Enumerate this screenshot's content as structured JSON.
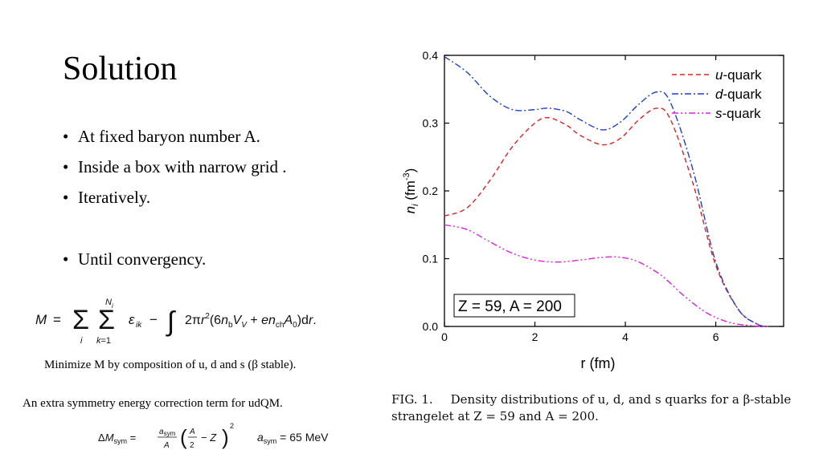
{
  "slide": {
    "title": "Solution",
    "bullets": [
      "At fixed baryon number A.",
      "Inside a box with narrow grid .",
      "Iteratively.",
      "Until convergency."
    ],
    "bullet_glyph": "•",
    "energy_equation": "M = Σ_i Σ_{k=1}^{N_i} ε_ik − ∫ 2πr²(6n_b V_V + e n_ch A_0) dr.",
    "note_minimize": "Minimize M by composition of u, d and s (β stable).",
    "note_symmetry": "An extra symmetry energy correction term for udQM.",
    "symmetry_equation": "ΔM_sym = (a_sym / A)(A/2 − Z)²",
    "asym_value": "a_sym = 65 MeV"
  },
  "figure": {
    "caption_lead": "FIG. 1.",
    "caption_text": "Density distributions of u, d, and s quarks for a β-stable strangelet at Z = 59 and A = 200."
  },
  "chart_data": {
    "type": "line",
    "xlabel": "r (fm)",
    "ylabel": "n_i (fm^-3)",
    "xlim": [
      0,
      7.5
    ],
    "ylim": [
      0,
      0.4
    ],
    "xticks": [
      0,
      2,
      4,
      6
    ],
    "yticks": [
      0.0,
      0.1,
      0.2,
      0.3,
      0.4
    ],
    "legend_position": "top-right",
    "annotation": "Z = 59, A = 200",
    "series": [
      {
        "name": "u-quark",
        "color": "#e02020",
        "dash": "dashed",
        "x": [
          0,
          0.5,
          1.0,
          1.5,
          2.0,
          2.3,
          2.7,
          3.0,
          3.5,
          3.9,
          4.3,
          4.7,
          5.0,
          5.5,
          6.0,
          6.5,
          6.9,
          7.1
        ],
        "y": [
          0.163,
          0.175,
          0.215,
          0.265,
          0.3,
          0.308,
          0.297,
          0.282,
          0.268,
          0.278,
          0.305,
          0.322,
          0.305,
          0.21,
          0.09,
          0.025,
          0.004,
          0.0
        ]
      },
      {
        "name": "d-quark",
        "color": "#1f3fd0",
        "dash": "dashdot",
        "x": [
          0,
          0.5,
          1.0,
          1.5,
          2.0,
          2.3,
          2.7,
          3.0,
          3.5,
          3.9,
          4.3,
          4.7,
          5.0,
          5.5,
          6.0,
          6.5,
          6.9,
          7.1
        ],
        "y": [
          0.398,
          0.375,
          0.34,
          0.32,
          0.32,
          0.322,
          0.317,
          0.305,
          0.29,
          0.302,
          0.328,
          0.346,
          0.33,
          0.23,
          0.095,
          0.025,
          0.004,
          0.0
        ]
      },
      {
        "name": "s-quark",
        "color": "#e020e0",
        "dash": "dashdotdot",
        "x": [
          0,
          0.5,
          1.0,
          1.5,
          2.0,
          2.5,
          3.0,
          3.5,
          3.9,
          4.3,
          4.8,
          5.3,
          5.8,
          6.3,
          6.8,
          7.2
        ],
        "y": [
          0.15,
          0.143,
          0.125,
          0.108,
          0.098,
          0.095,
          0.098,
          0.102,
          0.102,
          0.095,
          0.075,
          0.045,
          0.02,
          0.006,
          0.001,
          0.0
        ]
      }
    ]
  }
}
